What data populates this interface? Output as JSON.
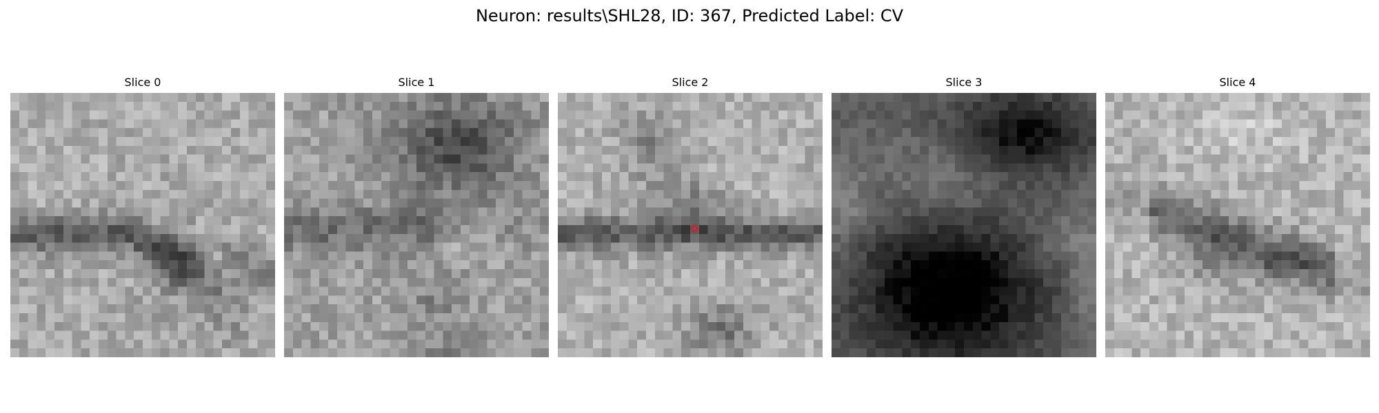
{
  "figure": {
    "title": "Neuron: results\\SHL28, ID: 367, Predicted Label: CV"
  },
  "slices": [
    {
      "label": "Slice 0"
    },
    {
      "label": "Slice 1"
    },
    {
      "label": "Slice 2"
    },
    {
      "label": "Slice 3"
    },
    {
      "label": "Slice 4"
    }
  ],
  "marker": {
    "slice_index": 2,
    "color": "#e8141c",
    "grid_col": 15,
    "grid_row": 14.9
  },
  "colormap": "gray"
}
